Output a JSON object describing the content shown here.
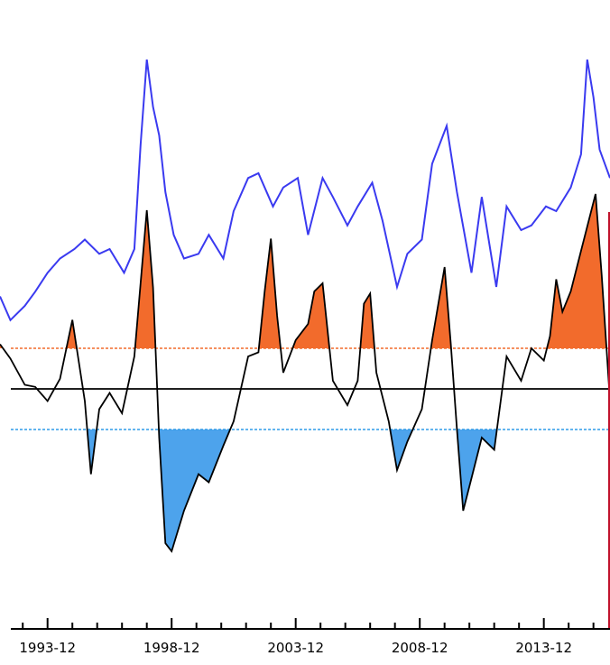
{
  "chart_data": {
    "type": "line",
    "title": "",
    "xlabel": "",
    "ylabel": "",
    "grid": false,
    "x_tick_labels": [
      "1993-12",
      "1998-12",
      "2003-12",
      "2008-12",
      "2013-12"
    ],
    "x_range": [
      "1992-01",
      "2016-08"
    ],
    "series": [
      {
        "role": "upper-trace",
        "color": "#3a3af0",
        "points": [
          [
            "1992-01",
            0.3
          ],
          [
            "1992-06",
            0.05
          ],
          [
            "1993-01",
            0.2
          ],
          [
            "1993-06",
            0.35
          ],
          [
            "1993-12",
            0.55
          ],
          [
            "1994-06",
            0.7
          ],
          [
            "1995-01",
            0.8
          ],
          [
            "1995-06",
            0.9
          ],
          [
            "1996-01",
            0.75
          ],
          [
            "1996-06",
            0.8
          ],
          [
            "1997-01",
            0.55
          ],
          [
            "1997-06",
            0.8
          ],
          [
            "1997-09",
            1.9
          ],
          [
            "1997-12",
            2.8
          ],
          [
            "1998-03",
            2.3
          ],
          [
            "1998-06",
            2.0
          ],
          [
            "1998-09",
            1.4
          ],
          [
            "1999-01",
            0.95
          ],
          [
            "1999-06",
            0.7
          ],
          [
            "2000-01",
            0.75
          ],
          [
            "2000-06",
            0.95
          ],
          [
            "2001-01",
            0.7
          ],
          [
            "2001-06",
            1.2
          ],
          [
            "2002-01",
            1.55
          ],
          [
            "2002-06",
            1.6
          ],
          [
            "2003-01",
            1.25
          ],
          [
            "2003-06",
            1.45
          ],
          [
            "2004-01",
            1.55
          ],
          [
            "2004-06",
            0.95
          ],
          [
            "2005-01",
            1.55
          ],
          [
            "2005-06",
            1.35
          ],
          [
            "2006-01",
            1.05
          ],
          [
            "2006-06",
            1.25
          ],
          [
            "2007-01",
            1.5
          ],
          [
            "2007-06",
            1.1
          ],
          [
            "2008-01",
            0.4
          ],
          [
            "2008-06",
            0.75
          ],
          [
            "2009-01",
            0.9
          ],
          [
            "2009-06",
            1.7
          ],
          [
            "2010-01",
            2.1
          ],
          [
            "2010-06",
            1.4
          ],
          [
            "2011-01",
            0.55
          ],
          [
            "2011-06",
            1.35
          ],
          [
            "2012-01",
            0.4
          ],
          [
            "2012-06",
            1.25
          ],
          [
            "2013-01",
            1.0
          ],
          [
            "2013-06",
            1.05
          ],
          [
            "2014-01",
            1.25
          ],
          [
            "2014-06",
            1.2
          ],
          [
            "2015-01",
            1.45
          ],
          [
            "2015-06",
            1.8
          ],
          [
            "2015-09",
            2.8
          ],
          [
            "2015-12",
            2.4
          ],
          [
            "2016-03",
            1.85
          ],
          [
            "2016-08",
            1.55
          ]
        ]
      },
      {
        "role": "index",
        "color": "#000000",
        "points": [
          [
            "1992-01",
            1.1
          ],
          [
            "1992-06",
            0.75
          ],
          [
            "1993-01",
            0.1
          ],
          [
            "1993-06",
            0.05
          ],
          [
            "1993-12",
            -0.3
          ],
          [
            "1994-06",
            0.25
          ],
          [
            "1994-12",
            1.7
          ],
          [
            "1995-06",
            -0.3
          ],
          [
            "1995-09",
            -2.1
          ],
          [
            "1996-01",
            -0.5
          ],
          [
            "1996-06",
            -0.1
          ],
          [
            "1996-12",
            -0.6
          ],
          [
            "1997-06",
            0.8
          ],
          [
            "1997-09",
            2.6
          ],
          [
            "1997-12",
            4.4
          ],
          [
            "1998-03",
            2.5
          ],
          [
            "1998-06",
            -1.2
          ],
          [
            "1998-09",
            -3.8
          ],
          [
            "1998-12",
            -4.0
          ],
          [
            "1999-06",
            -3.0
          ],
          [
            "2000-01",
            -2.1
          ],
          [
            "2000-06",
            -2.3
          ],
          [
            "2001-01",
            -1.4
          ],
          [
            "2001-06",
            -0.8
          ],
          [
            "2002-01",
            0.8
          ],
          [
            "2002-06",
            0.9
          ],
          [
            "2002-09",
            2.4
          ],
          [
            "2002-12",
            3.7
          ],
          [
            "2003-03",
            1.8
          ],
          [
            "2003-06",
            0.4
          ],
          [
            "2003-12",
            1.2
          ],
          [
            "2004-06",
            1.6
          ],
          [
            "2004-09",
            2.4
          ],
          [
            "2005-01",
            2.6
          ],
          [
            "2005-06",
            0.2
          ],
          [
            "2006-01",
            -0.4
          ],
          [
            "2006-06",
            0.2
          ],
          [
            "2006-09",
            2.1
          ],
          [
            "2006-12",
            2.35
          ],
          [
            "2007-03",
            0.4
          ],
          [
            "2007-09",
            -0.8
          ],
          [
            "2008-01",
            -2.0
          ],
          [
            "2008-06",
            -1.3
          ],
          [
            "2009-01",
            -0.5
          ],
          [
            "2009-06",
            1.2
          ],
          [
            "2009-12",
            3.0
          ],
          [
            "2010-03",
            1.1
          ],
          [
            "2010-06",
            -1.0
          ],
          [
            "2010-09",
            -3.0
          ],
          [
            "2011-01",
            -2.2
          ],
          [
            "2011-06",
            -1.2
          ],
          [
            "2011-12",
            -1.5
          ],
          [
            "2012-06",
            0.8
          ],
          [
            "2013-01",
            0.2
          ],
          [
            "2013-06",
            1.0
          ],
          [
            "2013-12",
            0.7
          ],
          [
            "2014-03",
            1.3
          ],
          [
            "2014-06",
            2.7
          ],
          [
            "2014-09",
            1.9
          ],
          [
            "2015-01",
            2.4
          ],
          [
            "2015-06",
            3.4
          ],
          [
            "2015-09",
            4.0
          ],
          [
            "2016-01",
            4.8
          ],
          [
            "2016-04",
            2.8
          ],
          [
            "2016-08",
            -0.3
          ]
        ]
      }
    ],
    "zero_line": 0,
    "upper_threshold": 1.0,
    "lower_threshold": -1.0,
    "shade_above_color": "#f26b2c",
    "shade_below_color": "#4da3ec",
    "upper_threshold_color": "#f26b2c",
    "lower_threshold_color": "#2e9be8",
    "right_edge_color": "#c0112a"
  }
}
